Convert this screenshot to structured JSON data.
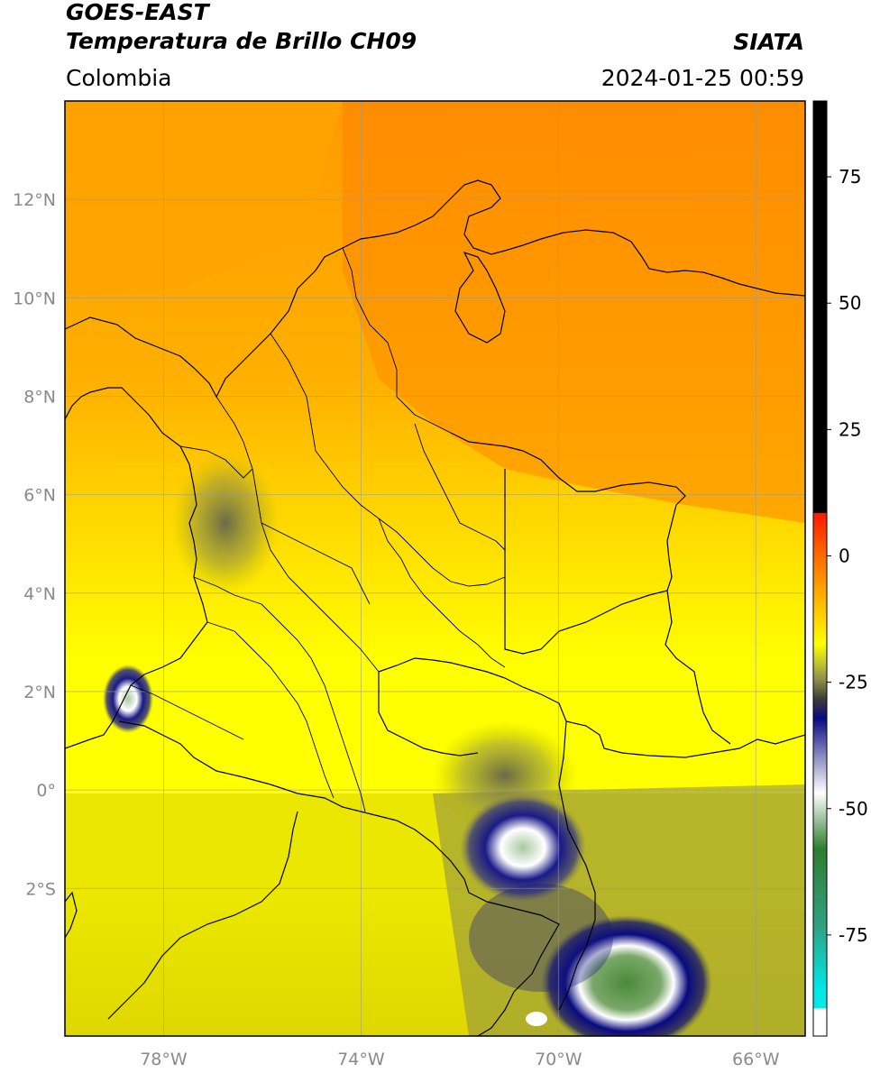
{
  "header": {
    "satellite": "GOES-EAST",
    "product": "Temperatura de Brillo CH09",
    "region": "Colombia",
    "brand": "SIATA",
    "datetime": "2024-01-25 00:59"
  },
  "map": {
    "lon_range": [
      -80,
      -65
    ],
    "lat_range": [
      -5,
      14
    ],
    "lon_ticks": [
      {
        "value": -78,
        "label": "78°W"
      },
      {
        "value": -74,
        "label": "74°W"
      },
      {
        "value": -70,
        "label": "70°W"
      },
      {
        "value": -66,
        "label": "66°W"
      }
    ],
    "lat_ticks": [
      {
        "value": 12,
        "label": "12°N"
      },
      {
        "value": 10,
        "label": "10°N"
      },
      {
        "value": 8,
        "label": "8°N"
      },
      {
        "value": 6,
        "label": "6°N"
      },
      {
        "value": 4,
        "label": "4°N"
      },
      {
        "value": 2,
        "label": "2°N"
      },
      {
        "value": 0,
        "label": "0°"
      },
      {
        "value": -2,
        "label": "2°S"
      }
    ],
    "grid": true
  },
  "colorbar": {
    "range": [
      -95,
      90
    ],
    "ticks": [
      {
        "value": 75,
        "label": "75"
      },
      {
        "value": 50,
        "label": "50"
      },
      {
        "value": 25,
        "label": "25"
      },
      {
        "value": 0,
        "label": "0"
      },
      {
        "value": -25,
        "label": "-25"
      },
      {
        "value": -50,
        "label": "-50"
      },
      {
        "value": -75,
        "label": "-75"
      }
    ],
    "colors": {
      "black": "#000000",
      "red": "#ff1a00",
      "orange": "#ff8c00",
      "yellow": "#ffff00",
      "olive": "#8a8a3a",
      "gray": "#4a4a4a",
      "navy": "#0a0a80",
      "white": "#ffffff",
      "green": "#2e7d2e",
      "cyan": "#00e0e0"
    }
  }
}
